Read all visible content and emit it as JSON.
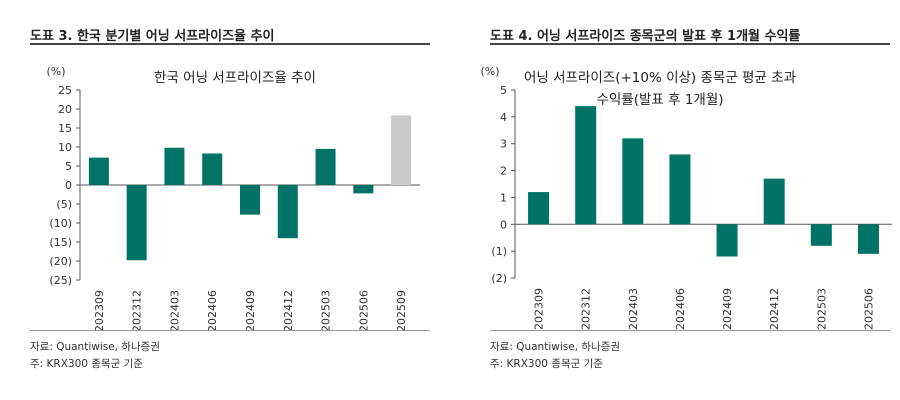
{
  "figures": [
    {
      "fig_title": "도표 3. 한국 분기별 어닝 서프라이즈율 추이",
      "source": "자료: Quantiwise, 하나증권",
      "note": "주: KRX300 종목군 기준",
      "accent_color": "#007366",
      "highlight_color": "#c8c8c8",
      "chart_data": {
        "type": "bar",
        "title": "한국 어닝 서프라이즈율 추이",
        "ylabel": "(%)",
        "xlabel": "",
        "ylim": [
          -25,
          25
        ],
        "yticks": [
          25,
          20,
          15,
          10,
          5,
          0,
          -5,
          -10,
          -15,
          -20,
          -25
        ],
        "ytick_labels": [
          "25",
          "20",
          "15",
          "10",
          "5",
          "0",
          "(5)",
          "(10)",
          "(15)",
          "(20)",
          "(25)"
        ],
        "categories": [
          "202309",
          "202312",
          "202403",
          "202406",
          "202409",
          "202412",
          "202503",
          "202506",
          "202509"
        ],
        "values": [
          7.2,
          -19.8,
          9.8,
          8.3,
          -7.8,
          -14.0,
          9.5,
          -2.2,
          18.3
        ],
        "highlight_index": 8
      }
    },
    {
      "fig_title": "도표 4. 어닝 서프라이즈 종목군의 발표 후 1개월 수익률",
      "source": "자료: Quantiwise, 하나증권",
      "note": "주: KRX300 종목군 기준",
      "accent_color": "#007366",
      "chart_data": {
        "type": "bar",
        "title": "어닝 서프라이즈(+10% 이상) 종목군 평균 초과",
        "subtitle": "수익률(발표 후 1개월)",
        "ylabel": "(%)",
        "xlabel": "",
        "ylim": [
          -2,
          5
        ],
        "yticks": [
          5,
          4,
          3,
          2,
          1,
          0,
          -1,
          -2
        ],
        "ytick_labels": [
          "5",
          "4",
          "3",
          "2",
          "1",
          "0",
          "(1)",
          "(2)"
        ],
        "categories": [
          "202309",
          "202312",
          "202403",
          "202406",
          "202409",
          "202412",
          "202503",
          "202506"
        ],
        "values": [
          1.2,
          4.4,
          3.2,
          2.6,
          -1.2,
          1.7,
          -0.8,
          -1.1
        ]
      }
    }
  ]
}
